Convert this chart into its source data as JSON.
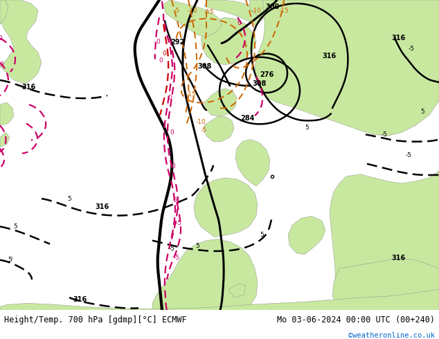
{
  "title_left": "Height/Temp. 700 hPa [gdmp][°C] ECMWF",
  "title_right": "Mo 03-06-2024 00:00 UTC (00+240)",
  "credit": "©weatheronline.co.uk",
  "bg_sea": "#d2d2d2",
  "bg_land": "#c8e8a0",
  "bg_land2": "#b8d890",
  "fig_width": 6.34,
  "fig_height": 4.9,
  "dpi": 100,
  "black": "#000000",
  "orange": "#cc6600",
  "pink": "#cc0066",
  "red": "#cc0000",
  "title_fs": 8.5,
  "credit_fs": 7.5,
  "lbl_fs": 6.5
}
